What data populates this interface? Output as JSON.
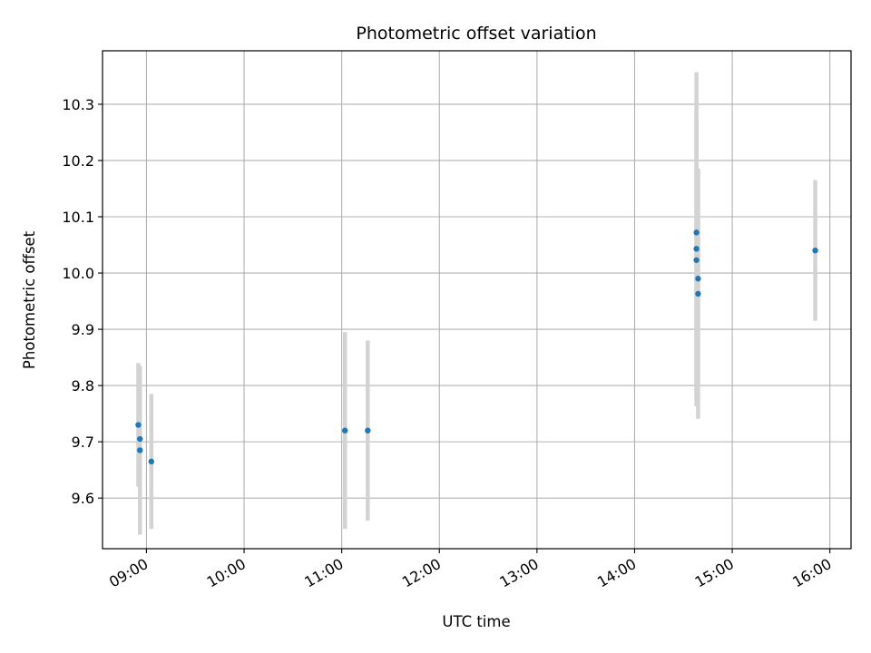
{
  "chart_data": {
    "type": "scatter",
    "title": "Photometric offset variation",
    "xlabel": "UTC time",
    "ylabel": "Photometric offset",
    "x_ticks": [
      "09:00",
      "10:00",
      "11:00",
      "12:00",
      "13:00",
      "14:00",
      "15:00",
      "16:00"
    ],
    "y_ticks": [
      "9.6",
      "9.7",
      "9.8",
      "9.9",
      "10.0",
      "10.1",
      "10.2",
      "10.3"
    ],
    "xlim": [
      "08:33",
      "16:13"
    ],
    "ylim": [
      9.51,
      10.395
    ],
    "grid": true,
    "legend": "none",
    "points": [
      {
        "x": "08:55",
        "y": 9.73,
        "err": 0.11
      },
      {
        "x": "08:56",
        "y": 9.705,
        "err": 0.13
      },
      {
        "x": "08:56",
        "y": 9.685,
        "err": 0.15
      },
      {
        "x": "09:03",
        "y": 9.665,
        "err": 0.12
      },
      {
        "x": "11:02",
        "y": 9.72,
        "err": 0.175
      },
      {
        "x": "11:16",
        "y": 9.72,
        "err": 0.16
      },
      {
        "x": "14:38",
        "y": 10.072,
        "err": 0.285
      },
      {
        "x": "14:38",
        "y": 10.043,
        "err": 0.27
      },
      {
        "x": "14:38",
        "y": 10.023,
        "err": 0.26
      },
      {
        "x": "14:39",
        "y": 9.99,
        "err": 0.195
      },
      {
        "x": "14:39",
        "y": 9.963,
        "err": 0.222
      },
      {
        "x": "15:51",
        "y": 10.04,
        "err": 0.125
      }
    ],
    "colors": {
      "point": "#1f77b4",
      "errorbar": "#d3d3d3",
      "grid": "#b0b0b0",
      "axes": "#000000"
    }
  }
}
